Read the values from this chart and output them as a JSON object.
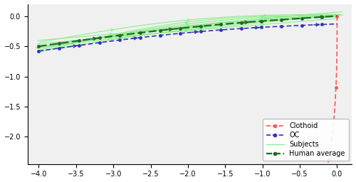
{
  "xlim": [
    -4.15,
    0.2
  ],
  "ylim": [
    -2.45,
    0.2
  ],
  "xticks": [
    -4.0,
    -3.5,
    -3.0,
    -2.5,
    -2.0,
    -1.5,
    -1.0,
    -0.5,
    0.0
  ],
  "yticks": [
    0.0,
    -0.5,
    -1.0,
    -1.5,
    -2.0
  ],
  "clothoid_color": "#ff5555",
  "oc_color": "#3333bb",
  "subjects_color": "#88ee88",
  "human_avg_color": "#226622",
  "background": "#f0f0f0",
  "legend_labels": [
    "Clothoid",
    "OC",
    "Subjects",
    "Human average"
  ]
}
